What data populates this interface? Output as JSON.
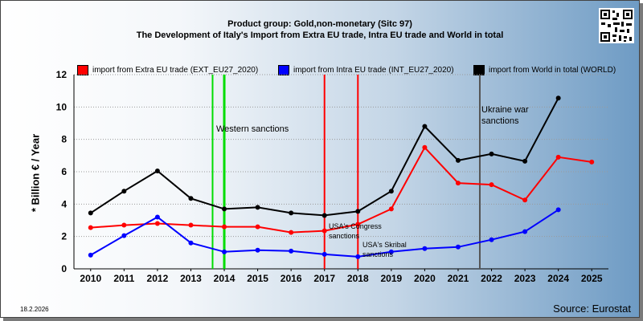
{
  "header": {
    "title_line1": "Product group: Gold,non-monetary (Sitc 97)",
    "title_line2": "The Development of Italy's Import from Extra EU trade, Intra EU trade and World in total"
  },
  "footer": {
    "date": "18.2.2026",
    "source": "Source: Eurostat"
  },
  "colors": {
    "extra": "#ff0000",
    "intra": "#0000ff",
    "world": "#000000",
    "green_line": "#00dd00",
    "gray_line": "#555555"
  },
  "annotations": {
    "western": "Western sanctions",
    "ukraine_1": "Ukraine war",
    "ukraine_2": "sanctions",
    "congress_1": "USA's Congress",
    "congress_2": "sanctions",
    "skribal_1": "USA's Skribal",
    "skribal_2": "sanctions"
  },
  "chart_data": {
    "type": "line",
    "ylabel": "* Billion € / Year",
    "xlabel": "",
    "ylim": [
      0,
      12
    ],
    "yticks": [
      0,
      2,
      4,
      6,
      8,
      10,
      12
    ],
    "x": [
      "2010",
      "2011",
      "2012",
      "2013",
      "2014",
      "2015",
      "2016",
      "2017",
      "2018",
      "2019",
      "2020",
      "2021",
      "2022",
      "2023",
      "2024",
      "2025"
    ],
    "grid": "horizontal",
    "legend_position": "top",
    "series": [
      {
        "name": "import from Extra EU trade (EXT_EU27_2020)",
        "color": "#ff0000",
        "values": [
          2.55,
          2.7,
          2.8,
          2.7,
          2.6,
          2.6,
          2.25,
          2.35,
          2.75,
          3.7,
          7.5,
          5.3,
          5.2,
          4.25,
          6.9,
          6.6
        ]
      },
      {
        "name": "import from Intra EU trade (INT_EU27_2020)",
        "color": "#0000ff",
        "values": [
          0.85,
          2.05,
          3.2,
          1.6,
          1.05,
          1.15,
          1.1,
          0.9,
          0.75,
          1.05,
          1.25,
          1.35,
          1.8,
          2.3,
          3.65,
          null
        ]
      },
      {
        "name": "import from World in total (WORLD)",
        "color": "#000000",
        "values": [
          3.45,
          4.8,
          6.05,
          4.35,
          3.7,
          3.8,
          3.45,
          3.3,
          3.55,
          4.8,
          8.8,
          6.7,
          7.1,
          6.65,
          10.55,
          null
        ]
      }
    ],
    "event_lines": [
      {
        "label": "Western sanctions",
        "year": 2014,
        "color": "#00dd00"
      },
      {
        "label": "USA's Congress sanctions",
        "year": 2017,
        "color": "#ff0000"
      },
      {
        "label": "USA's Skribal sanctions",
        "year": 2018,
        "color": "#ff0000"
      },
      {
        "label": "Ukraine war sanctions",
        "year": 2022,
        "color": "#555555"
      }
    ]
  }
}
